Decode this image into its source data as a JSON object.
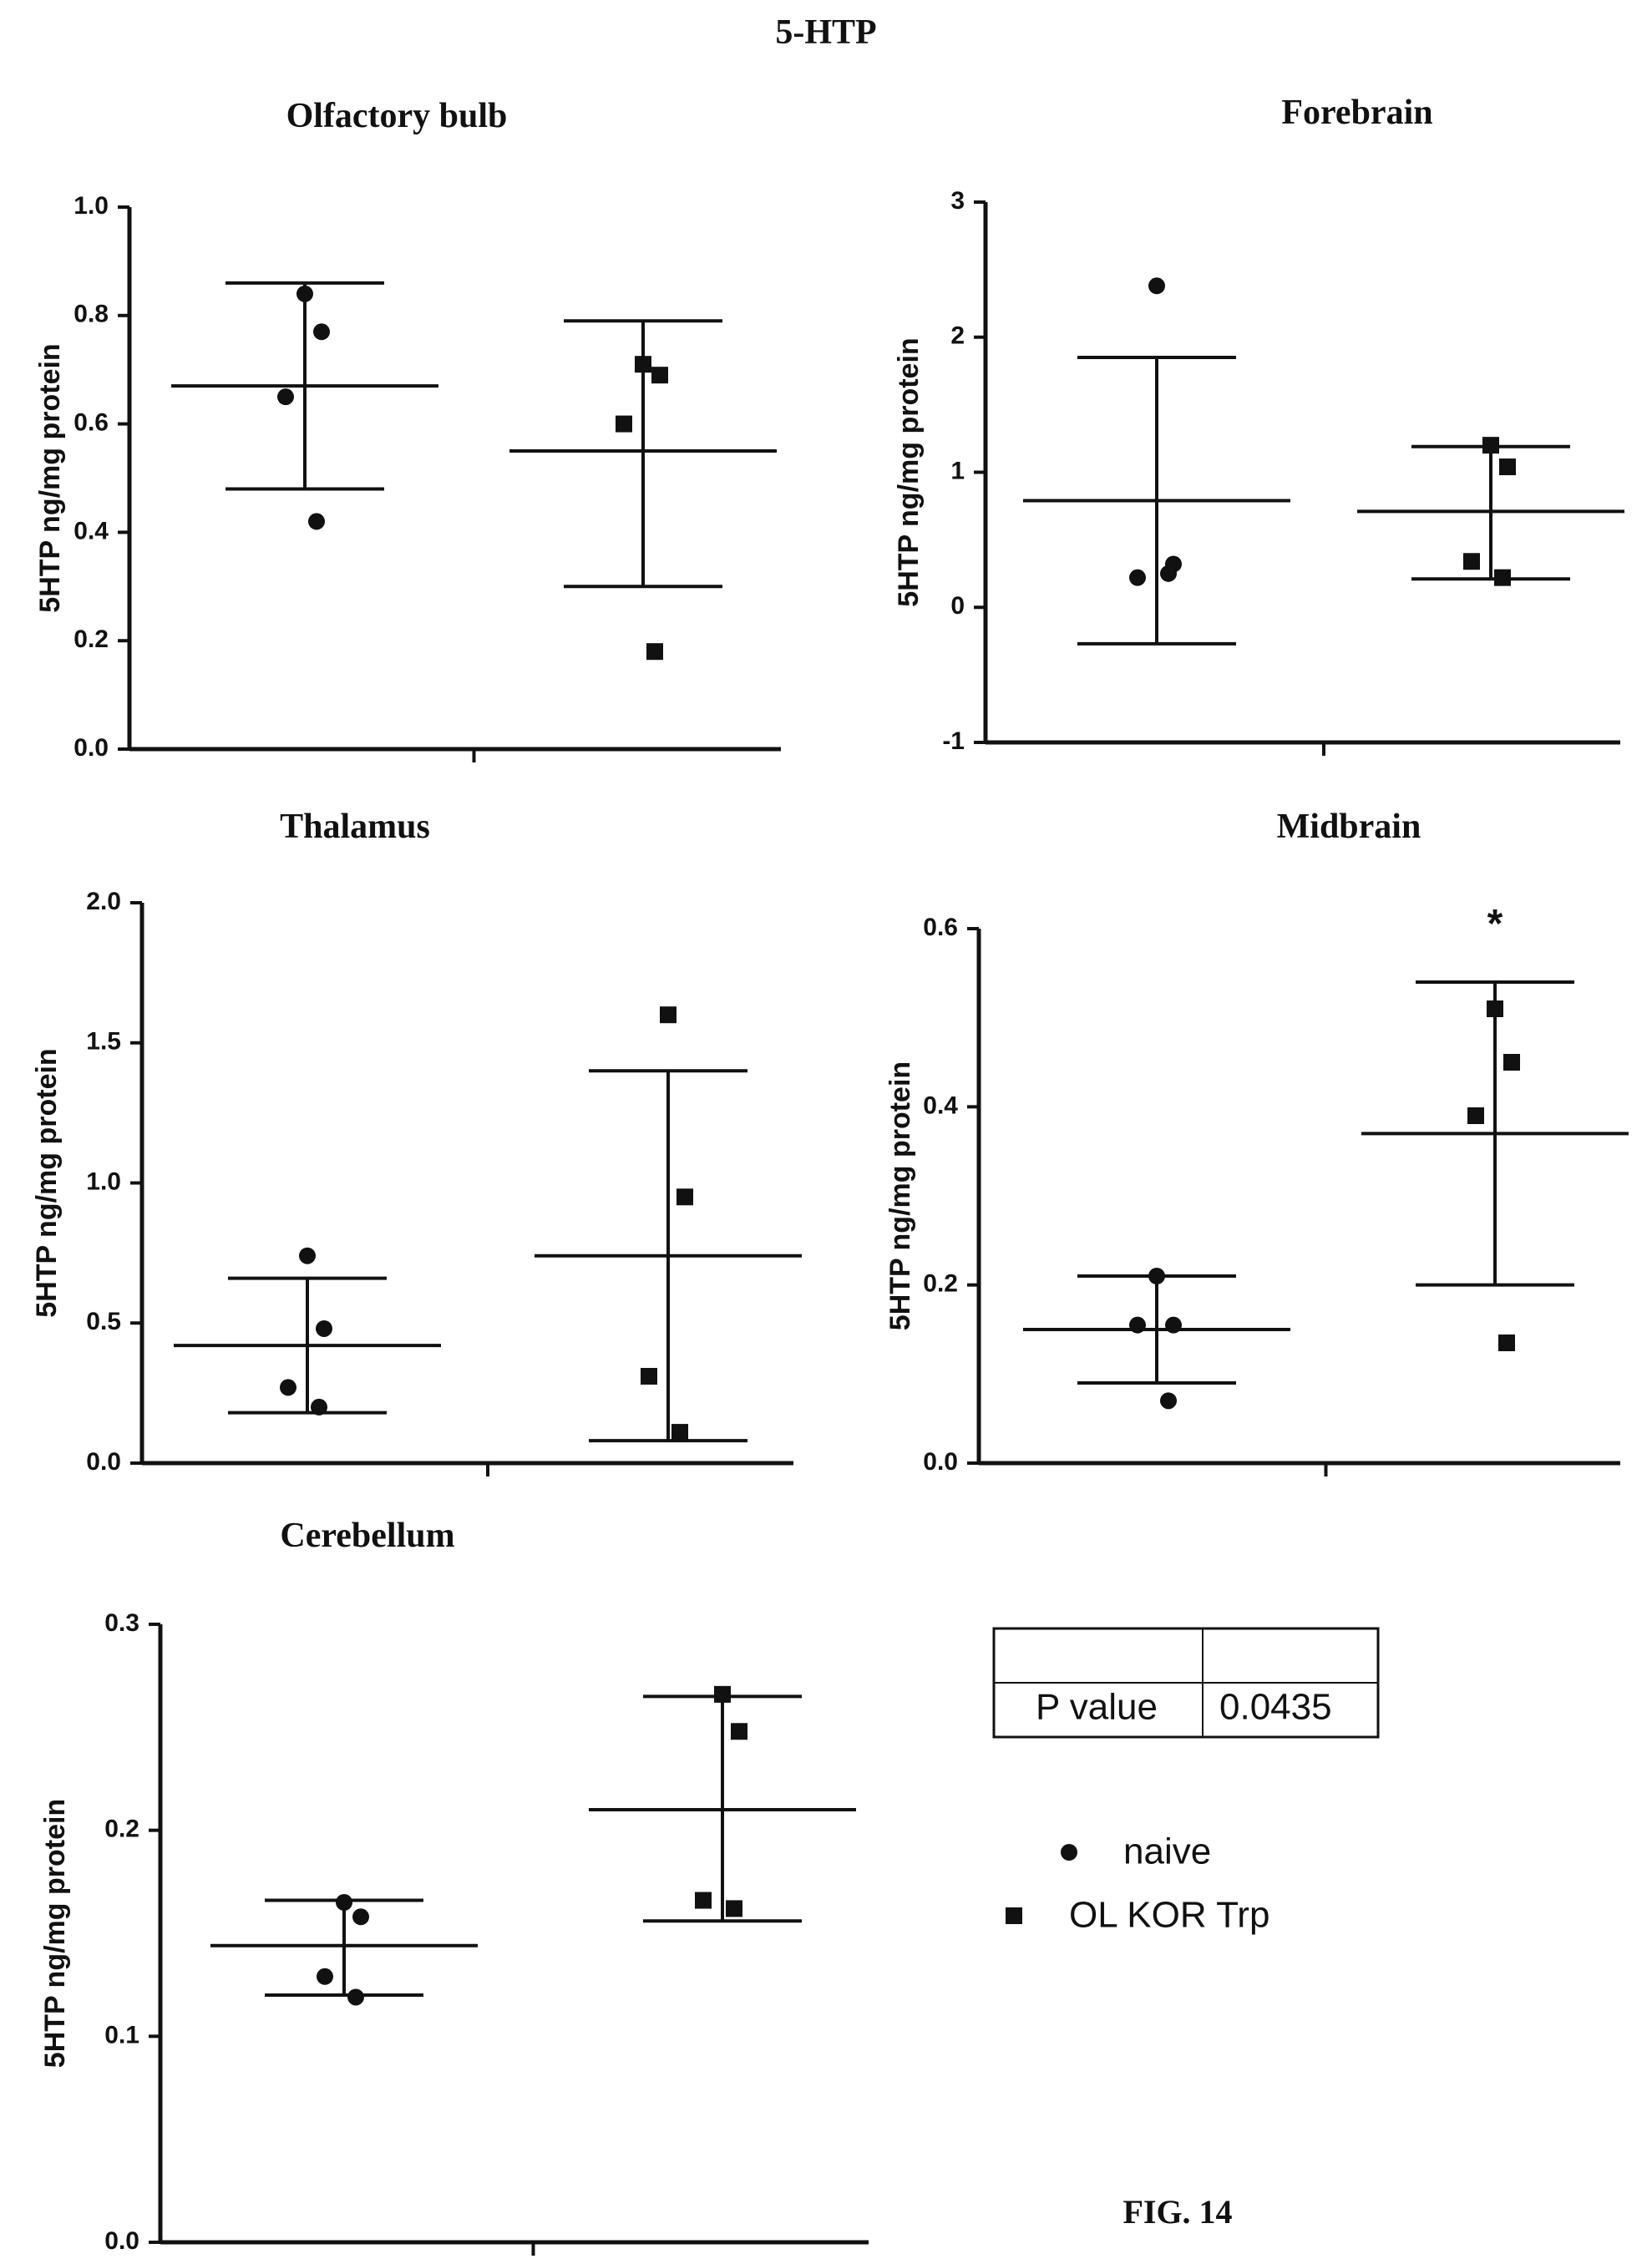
{
  "figure": {
    "main_title": "5-HTP",
    "caption": "FIG. 14"
  },
  "legend": {
    "items": [
      {
        "label": "naive",
        "marker": "circle"
      },
      {
        "label": "OL KOR Trp",
        "marker": "square"
      }
    ]
  },
  "p_table": {
    "header": [
      "",
      ""
    ],
    "row": [
      "P value",
      "0.0435"
    ]
  },
  "chart_data": [
    {
      "type": "scatter",
      "title": "Olfactory bulb",
      "ylabel": "5HTP ng/mg protein",
      "ylim": [
        0,
        1.0
      ],
      "yticks": [
        0.0,
        0.2,
        0.4,
        0.6,
        0.8,
        1.0
      ],
      "ytick_labels": [
        "0.0",
        "0.2",
        "0.4",
        "0.6",
        "0.8",
        "1.0"
      ],
      "series": [
        {
          "name": "naive",
          "marker": "circle",
          "values": [
            0.84,
            0.77,
            0.65,
            0.42
          ],
          "mean": 0.67,
          "err_low": 0.48,
          "err_high": 0.86
        },
        {
          "name": "OL KOR Trp",
          "marker": "square",
          "values": [
            0.71,
            0.69,
            0.6,
            0.18
          ],
          "mean": 0.55,
          "err_low": 0.3,
          "err_high": 0.79
        }
      ],
      "annotation": ""
    },
    {
      "type": "scatter",
      "title": "Forebrain",
      "ylabel": "5HTP ng/mg protein",
      "ylim": [
        -1,
        3
      ],
      "yticks": [
        -1,
        0,
        1,
        2,
        3
      ],
      "ytick_labels": [
        "-1",
        "0",
        "1",
        "2",
        "3"
      ],
      "series": [
        {
          "name": "naive",
          "marker": "circle",
          "values": [
            2.38,
            0.32,
            0.22,
            0.25
          ],
          "mean": 0.79,
          "err_low": -0.27,
          "err_high": 1.85
        },
        {
          "name": "OL KOR Trp",
          "marker": "square",
          "values": [
            1.2,
            1.04,
            0.34,
            0.22
          ],
          "mean": 0.71,
          "err_low": 0.21,
          "err_high": 1.19
        }
      ],
      "annotation": ""
    },
    {
      "type": "scatter",
      "title": "Thalamus",
      "ylabel": "5HTP ng/mg protein",
      "ylim": [
        0,
        2.0
      ],
      "yticks": [
        0.0,
        0.5,
        1.0,
        1.5,
        2.0
      ],
      "ytick_labels": [
        "0.0",
        "0.5",
        "1.0",
        "1.5",
        "2.0"
      ],
      "series": [
        {
          "name": "naive",
          "marker": "circle",
          "values": [
            0.74,
            0.48,
            0.27,
            0.2
          ],
          "mean": 0.42,
          "err_low": 0.18,
          "err_high": 0.66
        },
        {
          "name": "OL KOR Trp",
          "marker": "square",
          "values": [
            1.6,
            0.95,
            0.31,
            0.11
          ],
          "mean": 0.74,
          "err_low": 0.08,
          "err_high": 1.4
        }
      ],
      "annotation": ""
    },
    {
      "type": "scatter",
      "title": "Midbrain",
      "ylabel": "5HTP ng/mg protein",
      "ylim": [
        0,
        0.6
      ],
      "yticks": [
        0.0,
        0.2,
        0.4,
        0.6
      ],
      "ytick_labels": [
        "0.0",
        "0.2",
        "0.4",
        "0.6"
      ],
      "series": [
        {
          "name": "naive",
          "marker": "circle",
          "values": [
            0.21,
            0.155,
            0.155,
            0.07
          ],
          "mean": 0.15,
          "err_low": 0.09,
          "err_high": 0.21
        },
        {
          "name": "OL KOR Trp",
          "marker": "square",
          "values": [
            0.51,
            0.45,
            0.39,
            0.135
          ],
          "mean": 0.37,
          "err_low": 0.2,
          "err_high": 0.54
        }
      ],
      "annotation": "*"
    },
    {
      "type": "scatter",
      "title": "Cerebellum",
      "ylabel": "5HTP ng/mg protein",
      "ylim": [
        0,
        0.3
      ],
      "yticks": [
        0.0,
        0.1,
        0.2,
        0.3
      ],
      "ytick_labels": [
        "0.0",
        "0.1",
        "0.2",
        "0.3"
      ],
      "series": [
        {
          "name": "naive",
          "marker": "circle",
          "values": [
            0.165,
            0.158,
            0.129,
            0.119
          ],
          "mean": 0.144,
          "err_low": 0.12,
          "err_high": 0.166
        },
        {
          "name": "OL KOR Trp",
          "marker": "square",
          "values": [
            0.266,
            0.248,
            0.166,
            0.162
          ],
          "mean": 0.21,
          "err_low": 0.156,
          "err_high": 0.265
        }
      ],
      "annotation": ""
    }
  ]
}
